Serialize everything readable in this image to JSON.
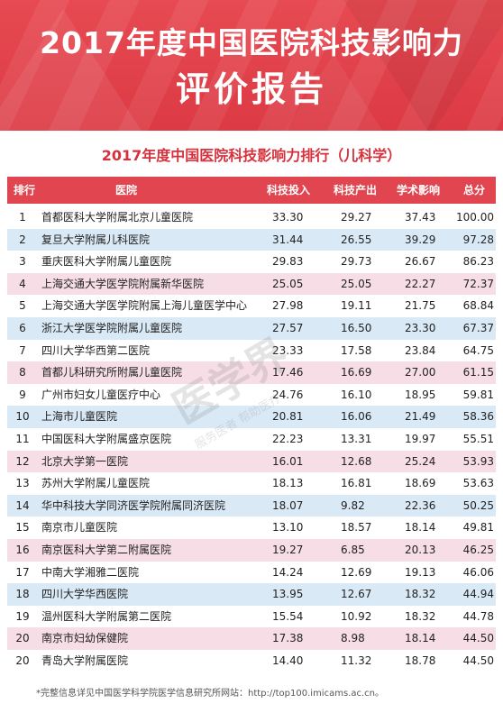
{
  "banner": {
    "title": "2017年度中国医院科技影响力",
    "subtitle": "评价报告"
  },
  "table_title": "2017年度中国医院科技影响力排行（儿科学）",
  "columns": {
    "rank": "排行",
    "hospital": "医院",
    "tech_input": "科技投入",
    "tech_output": "科技产出",
    "academic_impact": "学术影响",
    "total": "总分"
  },
  "rows": [
    {
      "rank": "1",
      "hospital": "首都医科大学附属北京儿童医院",
      "tech_input": "33.30",
      "tech_output": "29.27",
      "academic_impact": "37.43",
      "total": "100.00"
    },
    {
      "rank": "2",
      "hospital": "复旦大学附属儿科医院",
      "tech_input": "31.44",
      "tech_output": "26.55",
      "academic_impact": "39.29",
      "total": "97.28"
    },
    {
      "rank": "3",
      "hospital": "重庆医科大学附属儿童医院",
      "tech_input": "29.83",
      "tech_output": "29.73",
      "academic_impact": "26.67",
      "total": "86.23"
    },
    {
      "rank": "4",
      "hospital": "上海交通大学医学院附属新华医院",
      "tech_input": "25.05",
      "tech_output": "25.05",
      "academic_impact": "22.27",
      "total": "72.37"
    },
    {
      "rank": "5",
      "hospital": "上海交通大学医学院附属上海儿童医学中心",
      "tech_input": "27.98",
      "tech_output": "19.11",
      "academic_impact": "21.75",
      "total": "68.84"
    },
    {
      "rank": "6",
      "hospital": "浙江大学医学院附属儿童医院",
      "tech_input": "27.57",
      "tech_output": "16.50",
      "academic_impact": "23.30",
      "total": "67.37"
    },
    {
      "rank": "7",
      "hospital": "四川大学华西第二医院",
      "tech_input": "23.33",
      "tech_output": "17.58",
      "academic_impact": "23.84",
      "total": "64.75"
    },
    {
      "rank": "8",
      "hospital": "首都儿科研究所附属儿童医院",
      "tech_input": "17.46",
      "tech_output": "16.69",
      "academic_impact": "27.00",
      "total": "61.15"
    },
    {
      "rank": "9",
      "hospital": "广州市妇女儿童医疗中心",
      "tech_input": "24.76",
      "tech_output": "16.10",
      "academic_impact": "18.95",
      "total": "59.81"
    },
    {
      "rank": "10",
      "hospital": "上海市儿童医院",
      "tech_input": "20.81",
      "tech_output": "16.06",
      "academic_impact": "21.49",
      "total": "58.36"
    },
    {
      "rank": "11",
      "hospital": "中国医科大学附属盛京医院",
      "tech_input": "22.23",
      "tech_output": "13.31",
      "academic_impact": "19.97",
      "total": "55.51"
    },
    {
      "rank": "12",
      "hospital": "北京大学第一医院",
      "tech_input": "16.01",
      "tech_output": "12.68",
      "academic_impact": "25.24",
      "total": "53.93"
    },
    {
      "rank": "13",
      "hospital": "苏州大学附属儿童医院",
      "tech_input": "18.13",
      "tech_output": "16.81",
      "academic_impact": "18.69",
      "total": "53.63"
    },
    {
      "rank": "14",
      "hospital": "华中科技大学同济医学院附属同济医院",
      "tech_input": "18.07",
      "tech_output": "9.82",
      "academic_impact": "22.36",
      "total": "50.25"
    },
    {
      "rank": "15",
      "hospital": "南京市儿童医院",
      "tech_input": "13.10",
      "tech_output": "18.57",
      "academic_impact": "18.14",
      "total": "49.81"
    },
    {
      "rank": "16",
      "hospital": "南京医科大学第二附属医院",
      "tech_input": "19.27",
      "tech_output": "6.85",
      "academic_impact": "20.13",
      "total": "46.25"
    },
    {
      "rank": "17",
      "hospital": "中南大学湘雅二医院",
      "tech_input": "14.24",
      "tech_output": "12.69",
      "academic_impact": "19.13",
      "total": "46.06"
    },
    {
      "rank": "18",
      "hospital": "四川大学华西医院",
      "tech_input": "13.95",
      "tech_output": "12.67",
      "academic_impact": "18.32",
      "total": "44.94"
    },
    {
      "rank": "19",
      "hospital": "温州医科大学附属第二医院",
      "tech_input": "15.54",
      "tech_output": "10.92",
      "academic_impact": "18.32",
      "total": "44.78"
    },
    {
      "rank": "20",
      "hospital": "南京市妇幼保健院",
      "tech_input": "17.38",
      "tech_output": "8.98",
      "academic_impact": "18.14",
      "total": "44.50"
    },
    {
      "rank": "20",
      "hospital": "青岛大学附属医院",
      "tech_input": "14.40",
      "tech_output": "11.32",
      "academic_impact": "18.78",
      "total": "44.50"
    }
  ],
  "footnote": "*完整信息详见中国医学科学院医学信息研究所网站：http://top100.imicams.ac.cn。",
  "watermark": {
    "text": "医学界",
    "subtext": "服务医者 帮助医疗"
  },
  "colors": {
    "brand_red": "#e1454f",
    "title_red": "#d6323d",
    "row_white": "#ffffff",
    "row_blue": "#d9e9f6",
    "row_pink": "#f6dde6"
  },
  "row_stripe_pattern": [
    "white",
    "blue",
    "white",
    "pink"
  ]
}
